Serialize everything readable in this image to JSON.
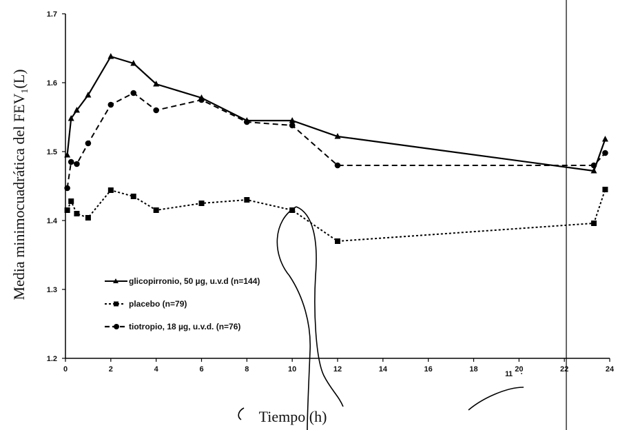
{
  "chart_data": {
    "type": "line",
    "title": "",
    "xlabel": "Tiempo (h)",
    "ylabel": "Media minimocuadrática del FEV",
    "ylabel_subscript": "1",
    "ylabel_unit": "(L)",
    "xlim": [
      0,
      24
    ],
    "ylim": [
      1.2,
      1.7
    ],
    "x_ticks": [
      "0",
      "2",
      "4",
      "6",
      "8",
      "10",
      "12",
      "14",
      "16",
      "18",
      "20",
      "22",
      "24"
    ],
    "y_ticks": [
      "1.2",
      "1.3",
      "1.4",
      "1.5",
      "1.6",
      "1.7"
    ],
    "grid": false,
    "legend_position": "lower-left",
    "series": [
      {
        "name": "glicopirronio, 50 µg, u.v.d (n=144)",
        "marker": "triangle",
        "line_style": "solid",
        "color": "#000000",
        "x": [
          0.08,
          0.25,
          0.5,
          1,
          2,
          3,
          4,
          6,
          8,
          10,
          12,
          23.3,
          23.8
        ],
        "y": [
          1.495,
          1.548,
          1.56,
          1.582,
          1.638,
          1.628,
          1.598,
          1.578,
          1.545,
          1.545,
          1.522,
          1.472,
          1.518
        ]
      },
      {
        "name": "placebo (n=79)",
        "marker": "square",
        "line_style": "dotted",
        "color": "#000000",
        "x": [
          0.08,
          0.25,
          0.5,
          1,
          2,
          3,
          4,
          6,
          8,
          10,
          12,
          23.3,
          23.8
        ],
        "y": [
          1.415,
          1.428,
          1.41,
          1.404,
          1.444,
          1.435,
          1.415,
          1.425,
          1.43,
          1.415,
          1.37,
          1.396,
          1.445
        ]
      },
      {
        "name": "tiotropio, 18 µg, u.v.d. (n=76)",
        "marker": "circle",
        "line_style": "dashed",
        "color": "#000000",
        "x": [
          0.08,
          0.25,
          0.5,
          1,
          2,
          3,
          4,
          6,
          8,
          10,
          12,
          23.3,
          23.8
        ],
        "y": [
          1.447,
          1.485,
          1.482,
          1.512,
          1.568,
          1.585,
          1.56,
          1.575,
          1.543,
          1.538,
          1.48,
          1.48,
          1.498
        ]
      }
    ],
    "annotations": [
      "1",
      "1",
      "."
    ]
  }
}
